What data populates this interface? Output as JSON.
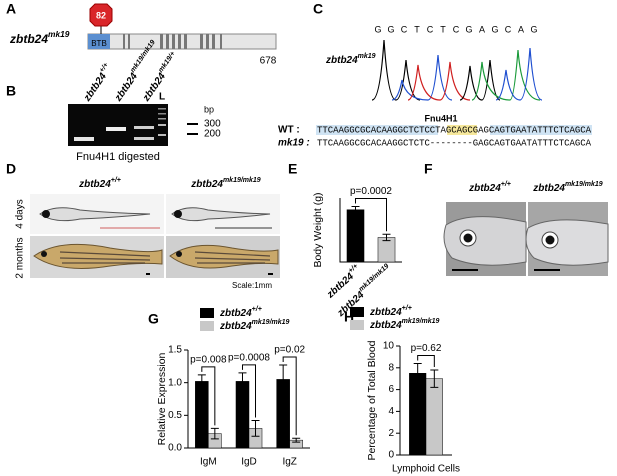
{
  "panels": {
    "A": {
      "label": "A",
      "gene": "zbtb24mk19",
      "stop": 82,
      "domain": "BTB",
      "length": 678
    },
    "B": {
      "label": "B",
      "lanes": [
        "zbtb24+/+",
        "zbtb24mk19/mk19",
        "zbtb24mk19/+",
        "L"
      ],
      "unit": "bp",
      "markers": [
        300,
        200
      ],
      "caption": "Fnu4H1 digested"
    },
    "C": {
      "label": "C",
      "bases": [
        "G",
        "G",
        "C",
        "T",
        "C",
        "T",
        "C",
        "G",
        "A",
        "G",
        "C",
        "A",
        "G"
      ],
      "genotype": "zbtb24mk19",
      "enzyme": "Fnu4H1",
      "rows": [
        {
          "name": "WT :",
          "seq": "TTCAAGGCGCACAAGGCTCTCCTAGCAGCGAGCAGTGAATATTTCTCAGCA"
        },
        {
          "name": "mk19 :",
          "seq": "TTCAAGGCGCACAAGGCTCTC--------GAGCAGTGAATATTTCTCAGCA"
        }
      ]
    },
    "D": {
      "label": "D",
      "genotypes": [
        "zbtb24+/+",
        "zbtb24mk19/mk19"
      ],
      "ages": [
        "4 days",
        "2 months"
      ],
      "scale": "Scale:1mm"
    },
    "E": {
      "label": "E"
    },
    "F": {
      "label": "F",
      "genotypes": [
        "zbtb24+/+",
        "zbtb24mk19/mk19"
      ]
    },
    "G": {
      "label": "G"
    },
    "H": {
      "label": "H"
    }
  },
  "chart_data": [
    {
      "type": "bar",
      "ylabel": "Body Weight (g)",
      "categories": [
        "zbtb24+/+",
        "zbtb24mk19/mk19"
      ],
      "values": [
        0.49,
        0.23
      ],
      "errors": [
        0.03,
        0.03
      ],
      "colors": [
        "#000000",
        "#c8c8c8"
      ],
      "ylim": [
        0,
        0.6
      ],
      "annotations": [
        "p=0.0002"
      ]
    },
    {
      "type": "bar",
      "ylabel": "Relative Expression",
      "categories": [
        "IgM",
        "IgD",
        "IgZ"
      ],
      "series": [
        {
          "name": "zbtb24+/+",
          "color": "#000000",
          "values": [
            1.02,
            1.02,
            1.05
          ],
          "errors": [
            0.1,
            0.13,
            0.22
          ]
        },
        {
          "name": "zbtb24mk19/mk19",
          "color": "#c8c8c8",
          "values": [
            0.22,
            0.3,
            0.12
          ],
          "errors": [
            0.08,
            0.12,
            0.03
          ]
        }
      ],
      "ylim": [
        0,
        1.5
      ],
      "yticks": [
        {
          "value": 0,
          "label": "0.0"
        },
        0.5,
        {
          "value": 1,
          "label": "1.0"
        },
        1.5
      ],
      "legend": "top-left",
      "annotations": [
        "p=0.008",
        "p=0.0008",
        "p=0.02"
      ]
    },
    {
      "type": "bar",
      "ylabel": "Percentage of Total Blood",
      "categories": [
        "Lymphoid Cells"
      ],
      "series": [
        {
          "name": "zbtb24+/+",
          "color": "#000000",
          "values": [
            7.5
          ],
          "errors": [
            0.9
          ]
        },
        {
          "name": "zbtb24mk19/mk19",
          "color": "#c8c8c8",
          "values": [
            7.0
          ],
          "errors": [
            0.8
          ]
        }
      ],
      "ylim": [
        0,
        10
      ],
      "yticks": [
        0,
        2,
        4,
        6,
        8,
        10
      ],
      "legend": "top-left",
      "annotations": [
        "p=0.62"
      ]
    }
  ]
}
